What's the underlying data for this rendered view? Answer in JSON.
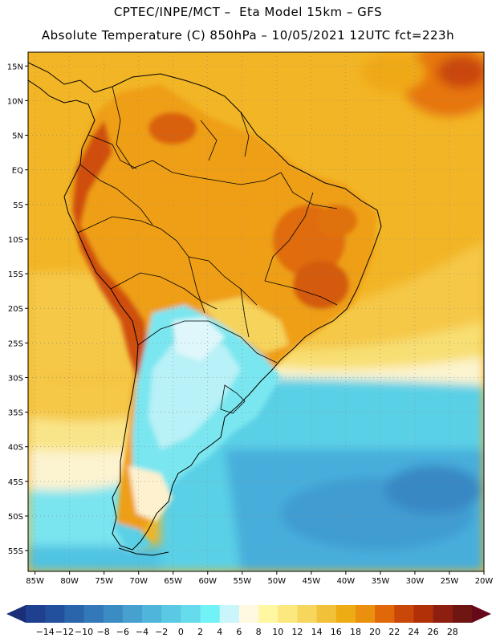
{
  "header": {
    "line1": "CPTEC/INPE/MCT –  Eta Model 15km – GFS",
    "line2": "Absolute Temperature (C) 850hPa – 10/05/2021 12UTC fct=223h"
  },
  "map": {
    "lon_range": [
      -86,
      -20
    ],
    "lat_range": [
      -58,
      17
    ],
    "lat_ticks": [
      "15N",
      "10N",
      "5N",
      "EQ",
      "5S",
      "10S",
      "15S",
      "20S",
      "25S",
      "30S",
      "35S",
      "40S",
      "45S",
      "50S",
      "55S"
    ],
    "lat_values": [
      15,
      10,
      5,
      0,
      -5,
      -10,
      -15,
      -20,
      -25,
      -30,
      -35,
      -40,
      -45,
      -50,
      -55
    ],
    "lon_ticks": [
      "85W",
      "80W",
      "75W",
      "70W",
      "65W",
      "60W",
      "55W",
      "50W",
      "45W",
      "40W",
      "35W",
      "30W",
      "25W",
      "20W"
    ],
    "lon_values": [
      -85,
      -80,
      -75,
      -70,
      -65,
      -60,
      -55,
      -50,
      -45,
      -40,
      -35,
      -30,
      -25,
      -20
    ]
  },
  "colorbar": {
    "labels": [
      "-14",
      "-12",
      "-10",
      "-8",
      "-6",
      "-4",
      "-2",
      "0",
      "2",
      "4",
      "6",
      "8",
      "10",
      "12",
      "14",
      "16",
      "18",
      "20",
      "22",
      "24",
      "26",
      "28"
    ],
    "colors": [
      "#1f3f8f",
      "#23509c",
      "#2a65ab",
      "#3378b8",
      "#3c8cc4",
      "#46a1cf",
      "#50b5da",
      "#5ac9e3",
      "#66dbeb",
      "#70f2f7",
      "#c9f5fb",
      "#fff9e2",
      "#fff7a2",
      "#fbe980",
      "#f6d65c",
      "#f1c239",
      "#eeac14",
      "#ea8f0e",
      "#e06809",
      "#c94709",
      "#b03008",
      "#8e1f10",
      "#6f1612"
    ],
    "arrow_left": "#1b2e78",
    "arrow_right": "#66091a"
  },
  "colors": {
    "ocean_warm": "#f1b422",
    "ocean_mid": "#f4c63f",
    "cream": "#fbf0c8",
    "cold": "#60dfe8",
    "colder": "#49b6d9",
    "coldest": "#3a8ec6"
  }
}
